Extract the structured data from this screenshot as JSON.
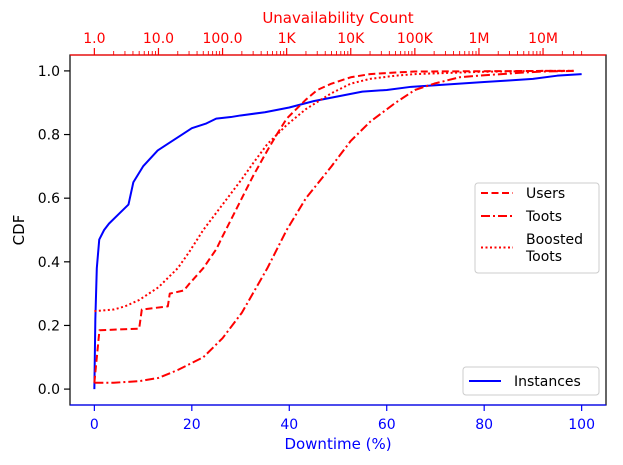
{
  "chart_data": {
    "type": "line",
    "colors": {
      "bottom_axis": "#0000ff",
      "top_axis": "#ff0000",
      "instances": "#0000ff",
      "red_series": "#ff0000"
    },
    "xlabel": "Downtime (%)",
    "ylabel": "CDF",
    "x2label": "Unavailability Count",
    "xlim": [
      -5,
      105
    ],
    "ylim": [
      -0.05,
      1.05
    ],
    "x_ticks": [
      0,
      20,
      40,
      60,
      80,
      100
    ],
    "x_tick_labels": [
      "0",
      "20",
      "40",
      "60",
      "80",
      "100"
    ],
    "y_ticks": [
      0.0,
      0.2,
      0.4,
      0.6,
      0.8,
      1.0
    ],
    "y_tick_labels": [
      "0.0",
      "0.2",
      "0.4",
      "0.6",
      "0.8",
      "1.0"
    ],
    "top_axis": {
      "scale": "log",
      "major_ticks": [
        1,
        10,
        100,
        1000,
        10000,
        100000,
        1000000,
        10000000
      ],
      "tick_labels": [
        "1.0",
        "10.0",
        "100.0",
        "1K",
        "10K",
        "100K",
        "1M",
        "10M"
      ],
      "range": [
        1,
        40000000
      ]
    },
    "legends": [
      {
        "position": "center-right",
        "entries": [
          {
            "label_lines": [
              "Users"
            ],
            "series": "users"
          },
          {
            "label_lines": [
              "Toots"
            ],
            "series": "toots"
          },
          {
            "label_lines": [
              "Boosted",
              "Toots"
            ],
            "series": "boosted"
          }
        ]
      },
      {
        "position": "lower-right",
        "entries": [
          {
            "label_lines": [
              "Instances"
            ],
            "series": "instances"
          }
        ]
      }
    ],
    "series": [
      {
        "name": "Instances",
        "key": "instances",
        "axis": "bottom",
        "color": "#0000ff",
        "style": "solid",
        "x": [
          0,
          0.2,
          0.5,
          1,
          2,
          3,
          5,
          7,
          8,
          10,
          13,
          15,
          18,
          20,
          23,
          25,
          28,
          30,
          35,
          40,
          45,
          50,
          55,
          60,
          65,
          70,
          75,
          80,
          85,
          90,
          95,
          100
        ],
        "y": [
          0.0,
          0.22,
          0.38,
          0.47,
          0.5,
          0.52,
          0.55,
          0.58,
          0.65,
          0.7,
          0.75,
          0.77,
          0.8,
          0.82,
          0.835,
          0.85,
          0.855,
          0.86,
          0.87,
          0.885,
          0.905,
          0.92,
          0.935,
          0.94,
          0.95,
          0.955,
          0.96,
          0.965,
          0.97,
          0.975,
          0.985,
          0.99
        ]
      },
      {
        "name": "Users",
        "key": "users",
        "axis": "top",
        "color": "#ff0000",
        "style": "dashed",
        "x": [
          1,
          1.2,
          5,
          5.5,
          14,
          15,
          25,
          30,
          50,
          80,
          100,
          150,
          200,
          300,
          500,
          700,
          1000,
          2000,
          3000,
          5000,
          10000,
          20000,
          50000,
          100000,
          1000000,
          10000000,
          30000000
        ],
        "y": [
          0.02,
          0.185,
          0.19,
          0.25,
          0.26,
          0.3,
          0.31,
          0.33,
          0.38,
          0.44,
          0.48,
          0.55,
          0.6,
          0.67,
          0.75,
          0.8,
          0.85,
          0.91,
          0.94,
          0.96,
          0.98,
          0.99,
          0.995,
          0.998,
          0.999,
          1.0,
          1.0
        ]
      },
      {
        "name": "Toots",
        "key": "toots",
        "axis": "top",
        "color": "#ff0000",
        "style": "dashdot",
        "x": [
          1,
          2,
          5,
          10,
          20,
          50,
          100,
          200,
          500,
          1000,
          2000,
          5000,
          10000,
          20000,
          50000,
          100000,
          200000,
          500000,
          1000000,
          5000000,
          10000000,
          30000000
        ],
        "y": [
          0.02,
          0.02,
          0.025,
          0.035,
          0.06,
          0.1,
          0.16,
          0.24,
          0.38,
          0.5,
          0.6,
          0.7,
          0.78,
          0.84,
          0.9,
          0.94,
          0.96,
          0.98,
          0.985,
          0.995,
          0.998,
          1.0
        ]
      },
      {
        "name": "Boosted Toots",
        "key": "boosted",
        "axis": "top",
        "color": "#ff0000",
        "style": "dotted",
        "x": [
          1,
          2,
          3,
          5,
          10,
          20,
          30,
          50,
          100,
          200,
          300,
          500,
          1000,
          2000,
          5000,
          10000,
          20000,
          50000,
          100000,
          1000000,
          10000000,
          30000000
        ],
        "y": [
          0.245,
          0.25,
          0.26,
          0.28,
          0.32,
          0.38,
          0.43,
          0.5,
          0.58,
          0.66,
          0.71,
          0.77,
          0.83,
          0.88,
          0.93,
          0.96,
          0.975,
          0.985,
          0.99,
          0.997,
          1.0,
          1.0
        ]
      }
    ]
  }
}
